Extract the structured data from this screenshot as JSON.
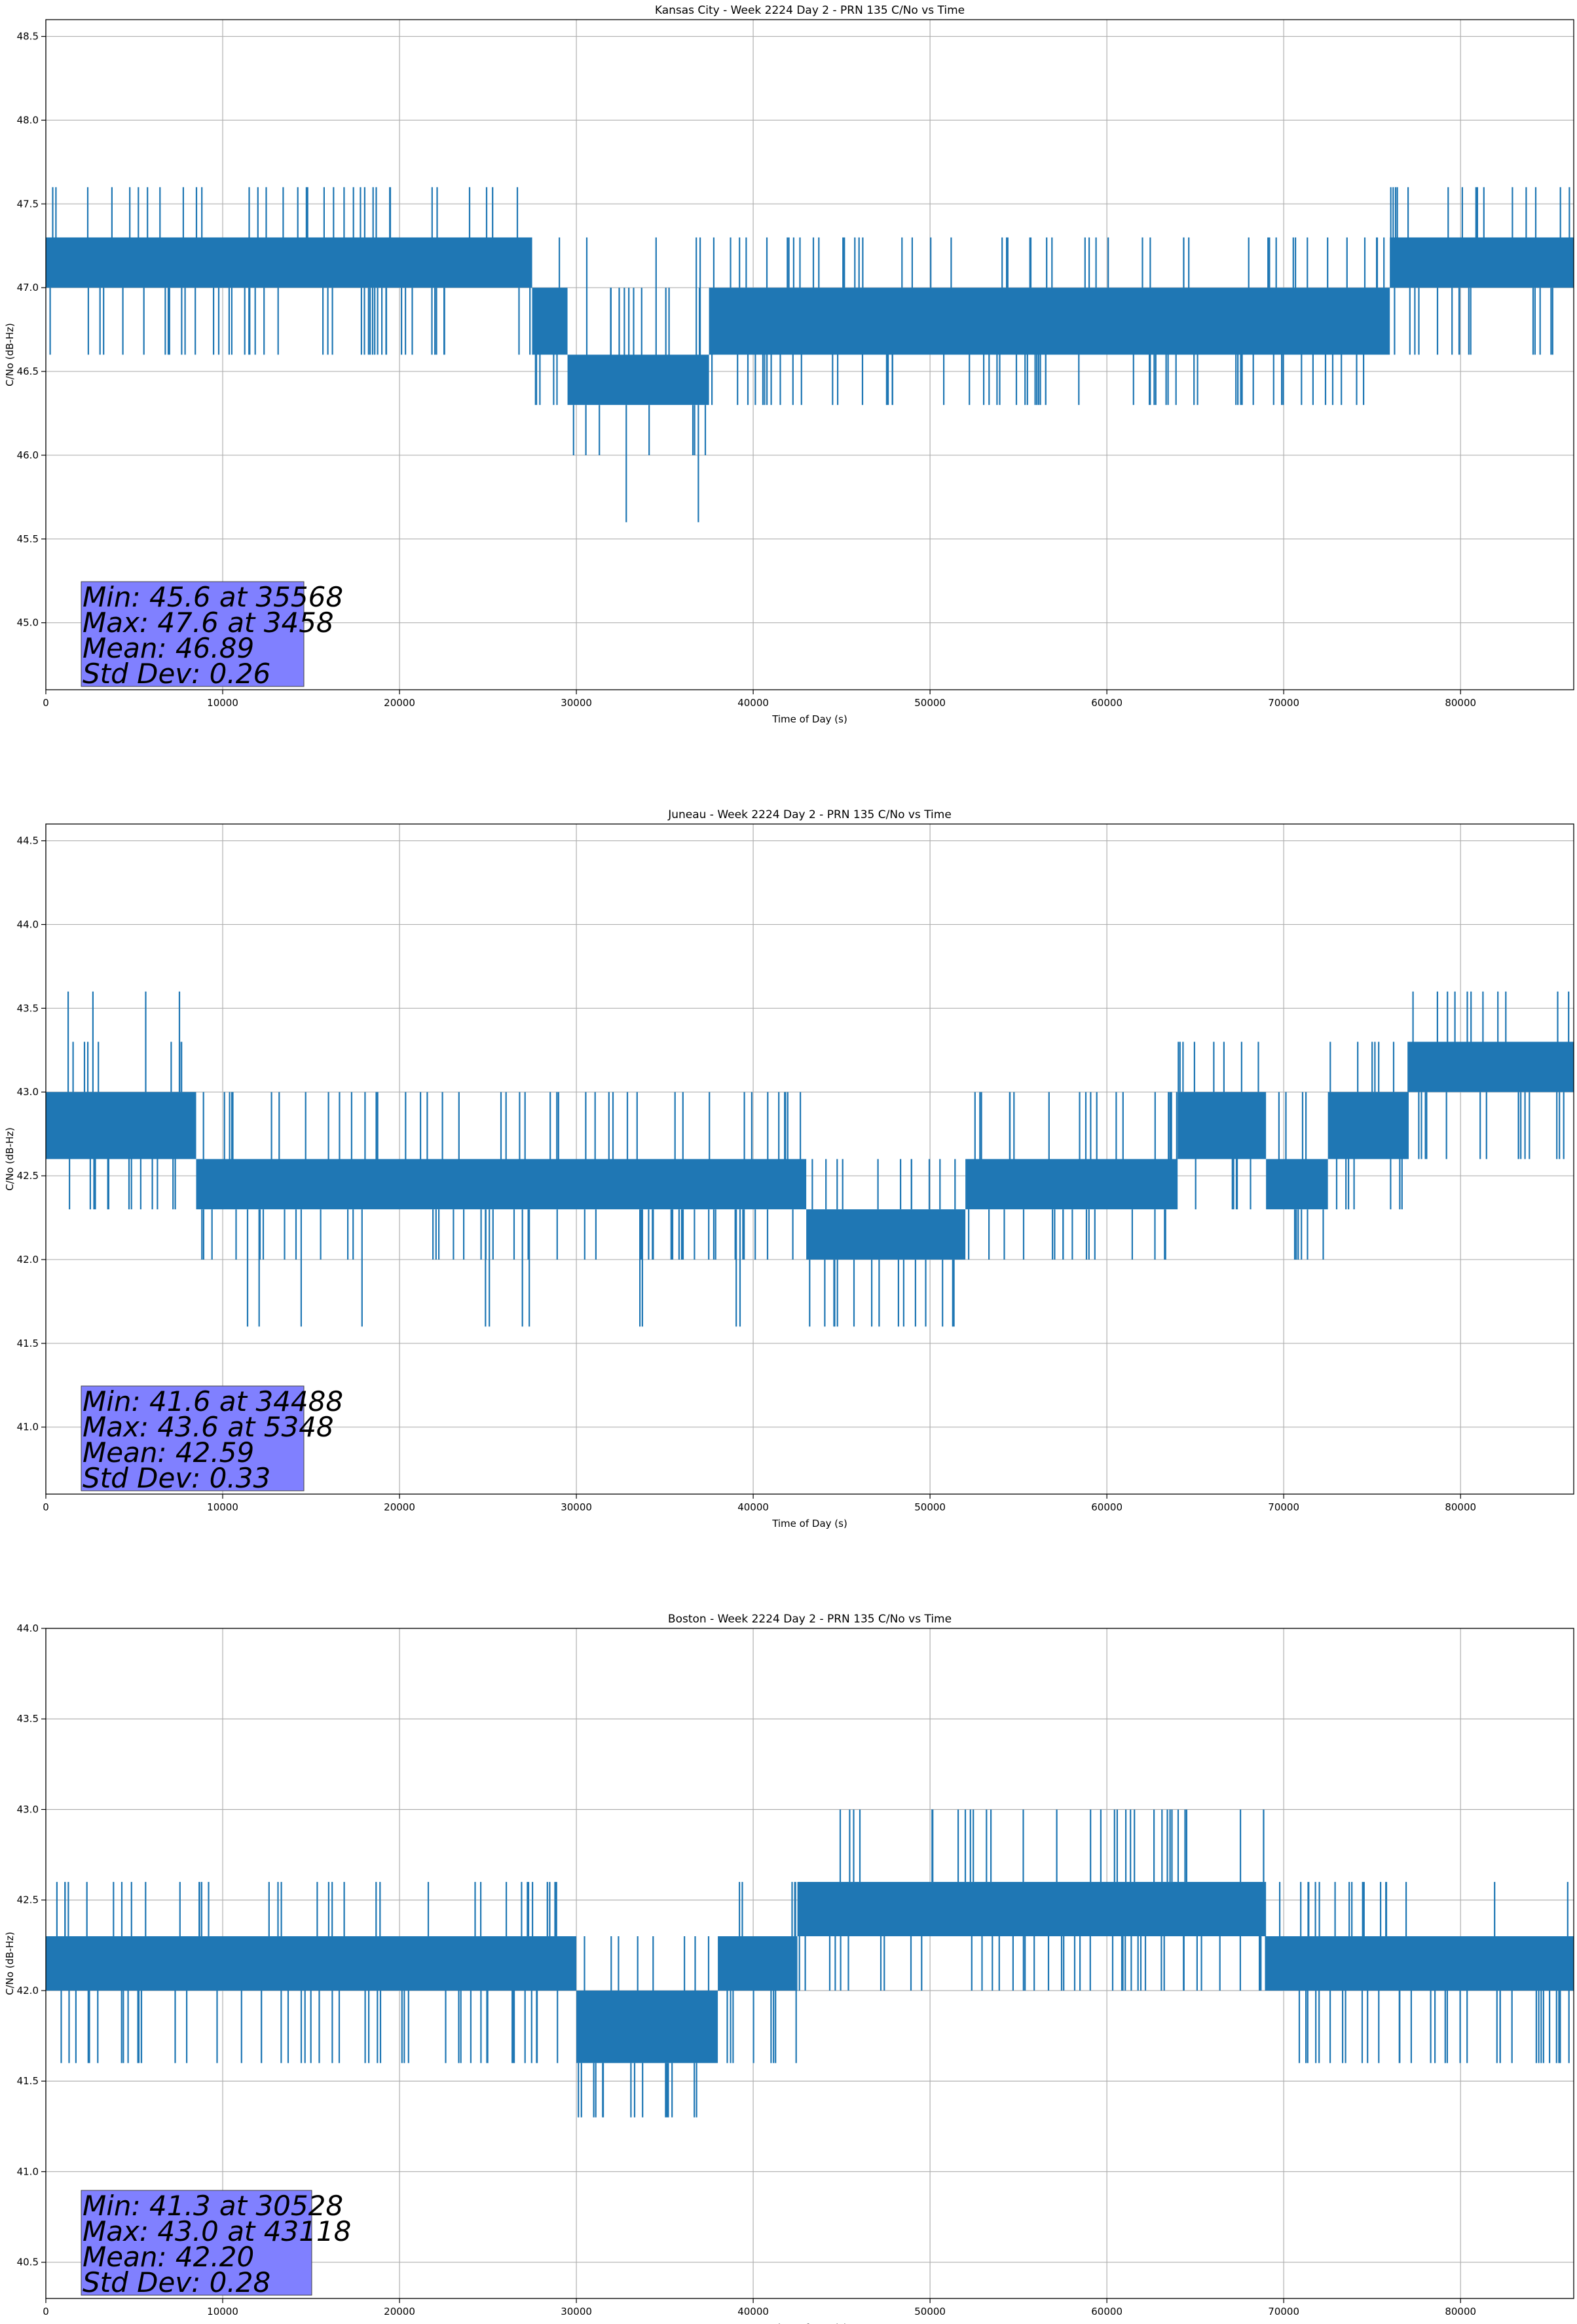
{
  "figure": {
    "background": "#ffffff",
    "line_color": "#1f77b4",
    "box_color": "#8080ff"
  },
  "chart_data": [
    {
      "type": "line",
      "title": "Kansas City - Week 2224 Day 2 - PRN 135 C/No vs Time",
      "xlabel": "Time of Day (s)",
      "ylabel": "C/No (dB-Hz)",
      "xlim": [
        0,
        86400
      ],
      "ylim": [
        44.6,
        48.6
      ],
      "xticks": [
        0,
        10000,
        20000,
        30000,
        40000,
        50000,
        60000,
        70000,
        80000
      ],
      "xtick_labels": [
        "0",
        "10000",
        "20000",
        "30000",
        "40000",
        "50000",
        "60000",
        "70000",
        "80000"
      ],
      "yticks": [
        45.0,
        45.5,
        46.0,
        46.5,
        47.0,
        47.5,
        48.0,
        48.5
      ],
      "ytick_labels": [
        "45.0",
        "45.5",
        "46.0",
        "46.5",
        "47.0",
        "47.5",
        "48.0",
        "48.5"
      ],
      "grid": true,
      "stats": [
        "Min: 45.6 at 35568",
        "Max: 47.6 at 3458",
        "Mean: 46.89",
        "Std Dev: 0.26"
      ],
      "series": [
        {
          "color": "#1f77b4",
          "bands": [
            {
              "x": [
                0,
                27500
              ],
              "lo": 47.0,
              "hi": 47.3,
              "dips": [
                46.6
              ],
              "spikes": [
                47.6
              ]
            },
            {
              "x": [
                27500,
                29500
              ],
              "lo": 46.6,
              "hi": 47.0,
              "dips": [
                46.3
              ],
              "spikes": [
                47.3
              ]
            },
            {
              "x": [
                29500,
                37500
              ],
              "lo": 46.3,
              "hi": 46.6,
              "dips": [
                46.0,
                45.6
              ],
              "spikes": [
                47.0,
                47.3
              ]
            },
            {
              "x": [
                37500,
                76000
              ],
              "lo": 46.6,
              "hi": 47.0,
              "dips": [
                46.3
              ],
              "spikes": [
                47.3
              ]
            },
            {
              "x": [
                76000,
                86400
              ],
              "lo": 47.0,
              "hi": 47.3,
              "dips": [
                46.6
              ],
              "spikes": [
                47.6
              ]
            }
          ]
        }
      ]
    },
    {
      "type": "line",
      "title": "Juneau - Week 2224 Day 2 - PRN 135 C/No vs Time",
      "xlabel": "Time of Day (s)",
      "ylabel": "C/No (dB-Hz)",
      "xlim": [
        0,
        86400
      ],
      "ylim": [
        40.6,
        44.6
      ],
      "xticks": [
        0,
        10000,
        20000,
        30000,
        40000,
        50000,
        60000,
        70000,
        80000
      ],
      "xtick_labels": [
        "0",
        "10000",
        "20000",
        "30000",
        "40000",
        "50000",
        "60000",
        "70000",
        "80000"
      ],
      "yticks": [
        41.0,
        41.5,
        42.0,
        42.5,
        43.0,
        43.5,
        44.0,
        44.5
      ],
      "ytick_labels": [
        "41.0",
        "41.5",
        "42.0",
        "42.5",
        "43.0",
        "43.5",
        "44.0",
        "44.5"
      ],
      "grid": true,
      "stats": [
        "Min: 41.6 at 34488",
        "Max: 43.6 at 5348",
        "Mean: 42.59",
        "Std Dev: 0.33"
      ],
      "series": [
        {
          "color": "#1f77b4",
          "bands": [
            {
              "x": [
                0,
                8500
              ],
              "lo": 42.6,
              "hi": 43.0,
              "dips": [
                42.3
              ],
              "spikes": [
                43.3,
                43.6
              ]
            },
            {
              "x": [
                8500,
                43000
              ],
              "lo": 42.3,
              "hi": 42.6,
              "dips": [
                42.0,
                41.6
              ],
              "spikes": [
                43.0
              ]
            },
            {
              "x": [
                43000,
                52000
              ],
              "lo": 42.0,
              "hi": 42.3,
              "dips": [
                41.6
              ],
              "spikes": [
                42.6
              ]
            },
            {
              "x": [
                52000,
                64000
              ],
              "lo": 42.3,
              "hi": 42.6,
              "dips": [
                42.0
              ],
              "spikes": [
                43.0
              ]
            },
            {
              "x": [
                64000,
                69000
              ],
              "lo": 42.6,
              "hi": 43.0,
              "dips": [
                42.3
              ],
              "spikes": [
                43.3
              ]
            },
            {
              "x": [
                69000,
                72500
              ],
              "lo": 42.3,
              "hi": 42.6,
              "dips": [
                42.0
              ],
              "spikes": [
                43.0
              ]
            },
            {
              "x": [
                72500,
                77000
              ],
              "lo": 42.6,
              "hi": 43.0,
              "dips": [
                42.3
              ],
              "spikes": [
                43.3
              ]
            },
            {
              "x": [
                77000,
                86400
              ],
              "lo": 43.0,
              "hi": 43.3,
              "dips": [
                42.6
              ],
              "spikes": [
                43.6
              ]
            }
          ]
        }
      ]
    },
    {
      "type": "line",
      "title": "Boston - Week 2224 Day 2 - PRN 135 C/No vs Time",
      "xlabel": "Time of Day (s)",
      "ylabel": "C/No (dB-Hz)",
      "xlim": [
        0,
        86400
      ],
      "ylim": [
        40.3,
        44.0
      ],
      "xticks": [
        0,
        10000,
        20000,
        30000,
        40000,
        50000,
        60000,
        70000,
        80000
      ],
      "xtick_labels": [
        "0",
        "10000",
        "20000",
        "30000",
        "40000",
        "50000",
        "60000",
        "70000",
        "80000"
      ],
      "yticks": [
        40.5,
        41.0,
        41.5,
        42.0,
        42.5,
        43.0,
        43.5,
        44.0
      ],
      "ytick_labels": [
        "40.5",
        "41.0",
        "41.5",
        "42.0",
        "42.5",
        "43.0",
        "43.5",
        "44.0"
      ],
      "grid": true,
      "stats": [
        "Min: 41.3 at 30528",
        "Max: 43.0 at 43118",
        "Mean: 42.20",
        "Std Dev: 0.28"
      ],
      "series": [
        {
          "color": "#1f77b4",
          "bands": [
            {
              "x": [
                0,
                30000
              ],
              "lo": 42.0,
              "hi": 42.3,
              "dips": [
                41.6
              ],
              "spikes": [
                42.6
              ]
            },
            {
              "x": [
                30000,
                38000
              ],
              "lo": 41.6,
              "hi": 42.0,
              "dips": [
                41.3
              ],
              "spikes": [
                42.3
              ]
            },
            {
              "x": [
                38000,
                42500
              ],
              "lo": 42.0,
              "hi": 42.3,
              "dips": [
                41.6
              ],
              "spikes": [
                42.6
              ]
            },
            {
              "x": [
                42500,
                69000
              ],
              "lo": 42.3,
              "hi": 42.6,
              "dips": [
                42.0
              ],
              "spikes": [
                43.0
              ]
            },
            {
              "x": [
                69000,
                86400
              ],
              "lo": 42.0,
              "hi": 42.3,
              "dips": [
                41.6
              ],
              "spikes": [
                42.6
              ]
            }
          ]
        }
      ]
    }
  ]
}
